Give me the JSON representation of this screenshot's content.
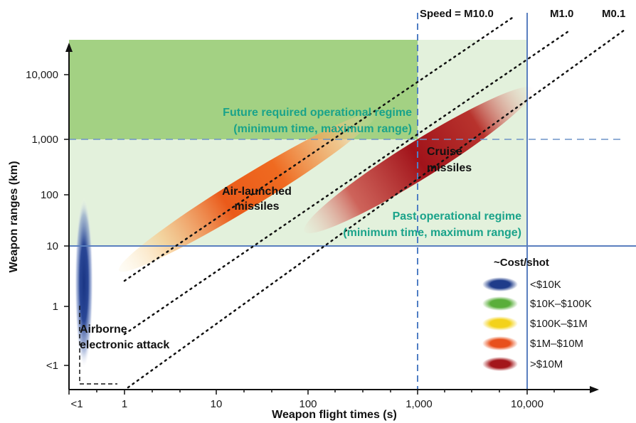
{
  "chart_data": {
    "type": "scatter",
    "title": "",
    "xlabel": "Weapon flight times (s)",
    "ylabel": "Weapon ranges (km)",
    "x_scale": "log",
    "y_scale": "log",
    "x_ticks": [
      "<1",
      "1",
      "10",
      "100",
      "1,000",
      "10,000"
    ],
    "y_ticks": [
      "<1",
      "1",
      "10",
      "100",
      "1,000",
      "10,000"
    ],
    "speed_lines": [
      {
        "label": "Speed = M10.0",
        "mach": 10.0
      },
      {
        "label": "M1.0",
        "mach": 1.0
      },
      {
        "label": "M0.1",
        "mach": 0.1
      }
    ],
    "regimes": [
      {
        "line1": "Future required operational regime",
        "line2": "(minimum time, maximum range)",
        "max_time_s": 1000,
        "min_range_km": 1000,
        "color": "#9fcf80"
      },
      {
        "line1": "Past operational regime",
        "line2": "(minimum time, maximum range)",
        "max_time_s": 10000,
        "min_range_km": 10,
        "color": "#e3f1dc"
      }
    ],
    "weapon_classes": [
      {
        "name": "Airborne electronic attack",
        "line1": "Airborne",
        "line2": "electronic attack",
        "cost": "<$10K",
        "time_s": 0.5,
        "range_km_min": 0.5,
        "range_km_max": 60
      },
      {
        "name": "Air-launched missiles",
        "line1": "Air-launched",
        "line2": "missiles",
        "cost": "$1M–$10M",
        "time_s_min": 2,
        "time_s_max": 500,
        "range_km_min": 1,
        "range_km_max": 1000
      },
      {
        "name": "Cruise missiles",
        "line1": "Cruise",
        "line2": "missiles",
        "cost": ">$10M",
        "time_s_min": 300,
        "time_s_max": 8000,
        "range_km_min": 30,
        "range_km_max": 4000
      }
    ],
    "legend": {
      "title": "~Cost/shot",
      "items": [
        {
          "label": "<$10K",
          "color": "#1f3c8a"
        },
        {
          "label": "$10K–$100K",
          "color": "#5aae3a"
        },
        {
          "label": "$100K–$1M",
          "color": "#f3d21a"
        },
        {
          "label": "$1M–$10M",
          "color": "#e8501c"
        },
        {
          "label": ">$10M",
          "color": "#a3161a"
        }
      ]
    }
  }
}
